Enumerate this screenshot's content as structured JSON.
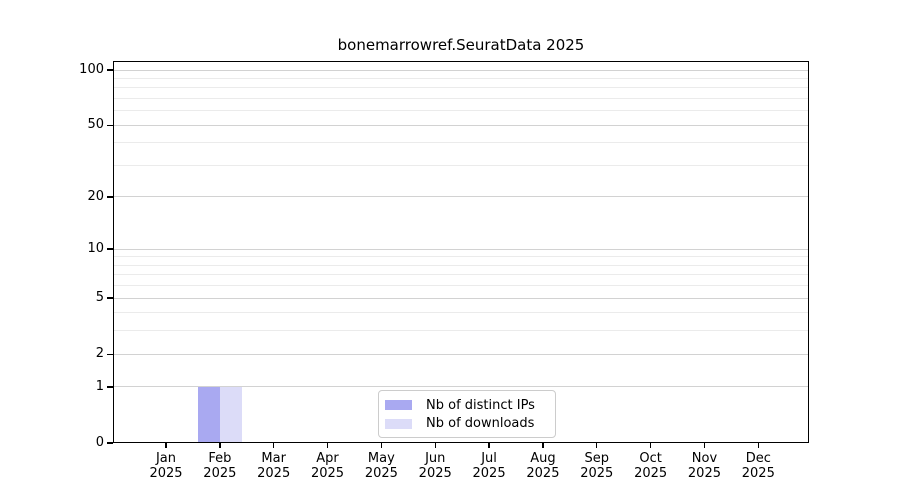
{
  "figure": {
    "background": "#ffffff"
  },
  "colors": {
    "axis": "#000000",
    "grid_major": "#d2d2d2",
    "grid_minor": "#ebebeb",
    "legend_border": "#cccccc",
    "bar_distinct_ips": "#a9a9f1",
    "bar_downloads": "#dcdcf8"
  },
  "chart_data": {
    "type": "bar",
    "title": "bonemarrowref.SeuratData 2025",
    "xlabel": "",
    "ylabel": "",
    "y_scale": "log1p",
    "ylim": [
      0,
      100
    ],
    "grid": true,
    "legend_position": "lower center",
    "categories": [
      "Jan 2025",
      "Feb 2025",
      "Mar 2025",
      "Apr 2025",
      "May 2025",
      "Jun 2025",
      "Jul 2025",
      "Aug 2025",
      "Sep 2025",
      "Oct 2025",
      "Nov 2025",
      "Dec 2025"
    ],
    "series": [
      {
        "name": "Nb of distinct IPs",
        "color": "#a9a9f1",
        "values": [
          0,
          1,
          0,
          0,
          0,
          0,
          0,
          0,
          0,
          0,
          0,
          0
        ]
      },
      {
        "name": "Nb of downloads",
        "color": "#dcdcf8",
        "values": [
          0,
          1,
          0,
          0,
          0,
          0,
          0,
          0,
          0,
          0,
          0,
          0
        ]
      }
    ],
    "y_major_ticks": [
      0,
      1,
      2,
      5,
      10,
      20,
      50,
      100
    ],
    "y_minor_gridlines": [
      3,
      4,
      6,
      7,
      8,
      9,
      30,
      40,
      60,
      70,
      80,
      90
    ]
  }
}
